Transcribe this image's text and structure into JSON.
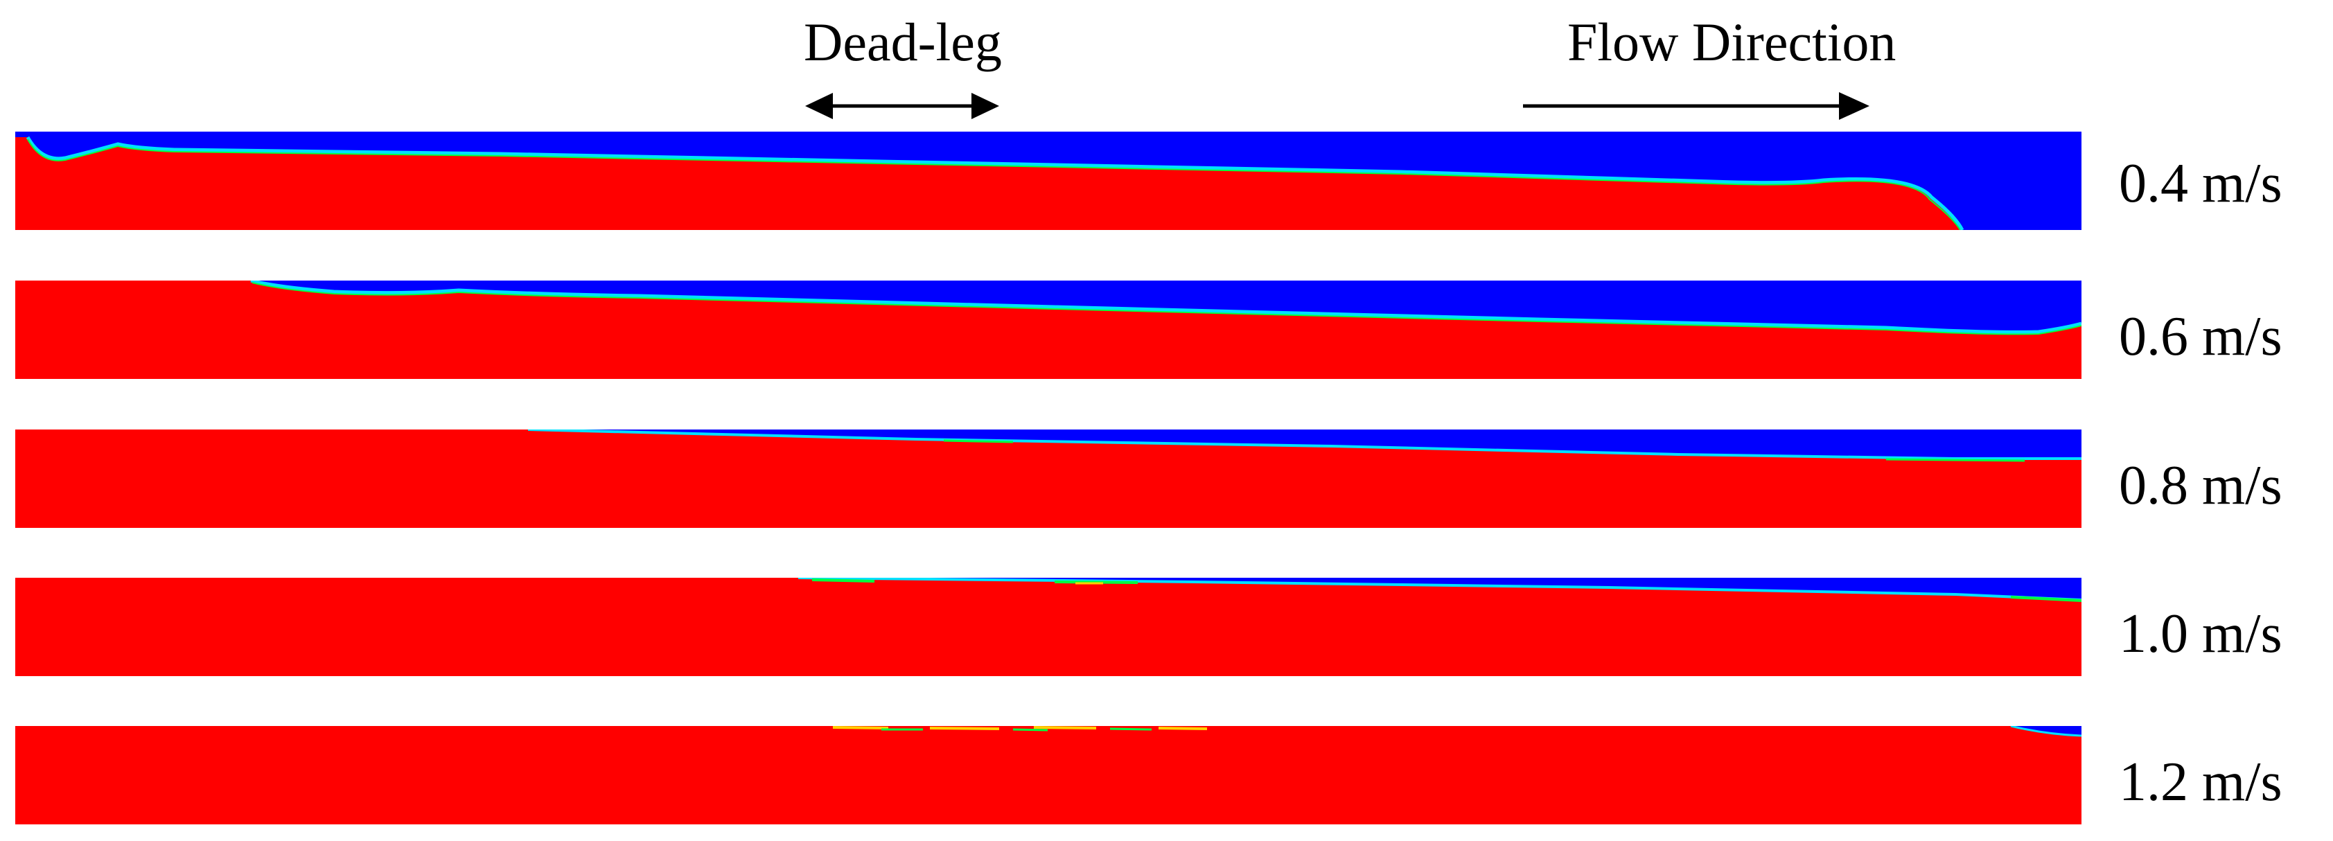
{
  "annotations": {
    "dead_leg": "Dead-leg",
    "flow_direction": "Flow Direction"
  },
  "colors": {
    "phase_a": "#ff0000",
    "phase_b": "#0000ff",
    "interface_1": "#00e0ff",
    "interface_2": "#00ff40",
    "interface_3": "#ffd000"
  },
  "cases": [
    {
      "velocity": "0.4 m/s"
    },
    {
      "velocity": "0.6 m/s"
    },
    {
      "velocity": "0.8 m/s"
    },
    {
      "velocity": "1.0 m/s"
    },
    {
      "velocity": "1.2 m/s"
    }
  ]
}
